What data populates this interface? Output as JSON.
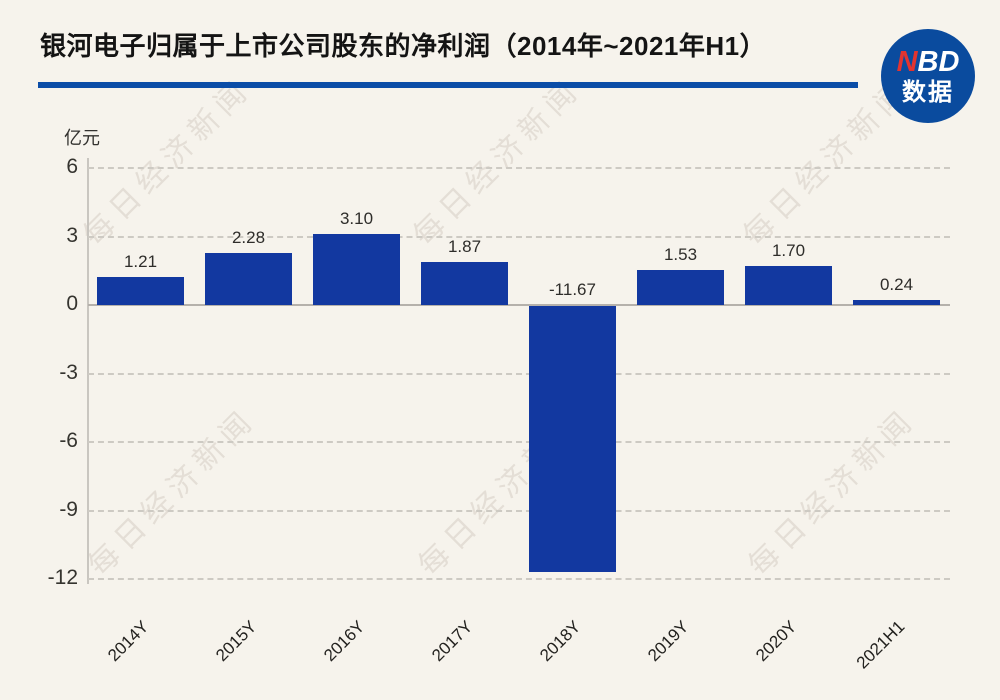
{
  "page": {
    "background": "#f6f3ec"
  },
  "header": {
    "title": "银河电子归属于上市公司股东的净利润（2014年~2021年H1）",
    "divider_color": "#0b4da7"
  },
  "logo": {
    "nbd_red_letter": "N",
    "nbd_rest": "BD",
    "line2": "数据",
    "circle_color": "#0a4b9e",
    "red_color": "#e23430"
  },
  "watermark": {
    "text": "每日经济新闻"
  },
  "chart_data": {
    "type": "bar",
    "title": "银河电子归属于上市公司股东的净利润（2014年~2021年H1）",
    "ylabel": "亿元",
    "xlabel": "",
    "categories": [
      "2014Y",
      "2015Y",
      "2016Y",
      "2017Y",
      "2018Y",
      "2019Y",
      "2020Y",
      "2021H1"
    ],
    "values": [
      1.21,
      2.28,
      3.1,
      1.87,
      -11.67,
      1.53,
      1.7,
      0.24
    ],
    "data_labels": [
      "1.21",
      "2.28",
      "3.10",
      "1.87",
      "-11.67",
      "1.53",
      "1.70",
      "0.24"
    ],
    "y_ticks": [
      6,
      3,
      0,
      -3,
      -6,
      -9,
      -12
    ],
    "ylim": [
      -12,
      6
    ],
    "grid": "horizontal-dashed",
    "legend_position": "none",
    "bar_color": "#1238a0",
    "background_color": "#f6f3ec"
  }
}
